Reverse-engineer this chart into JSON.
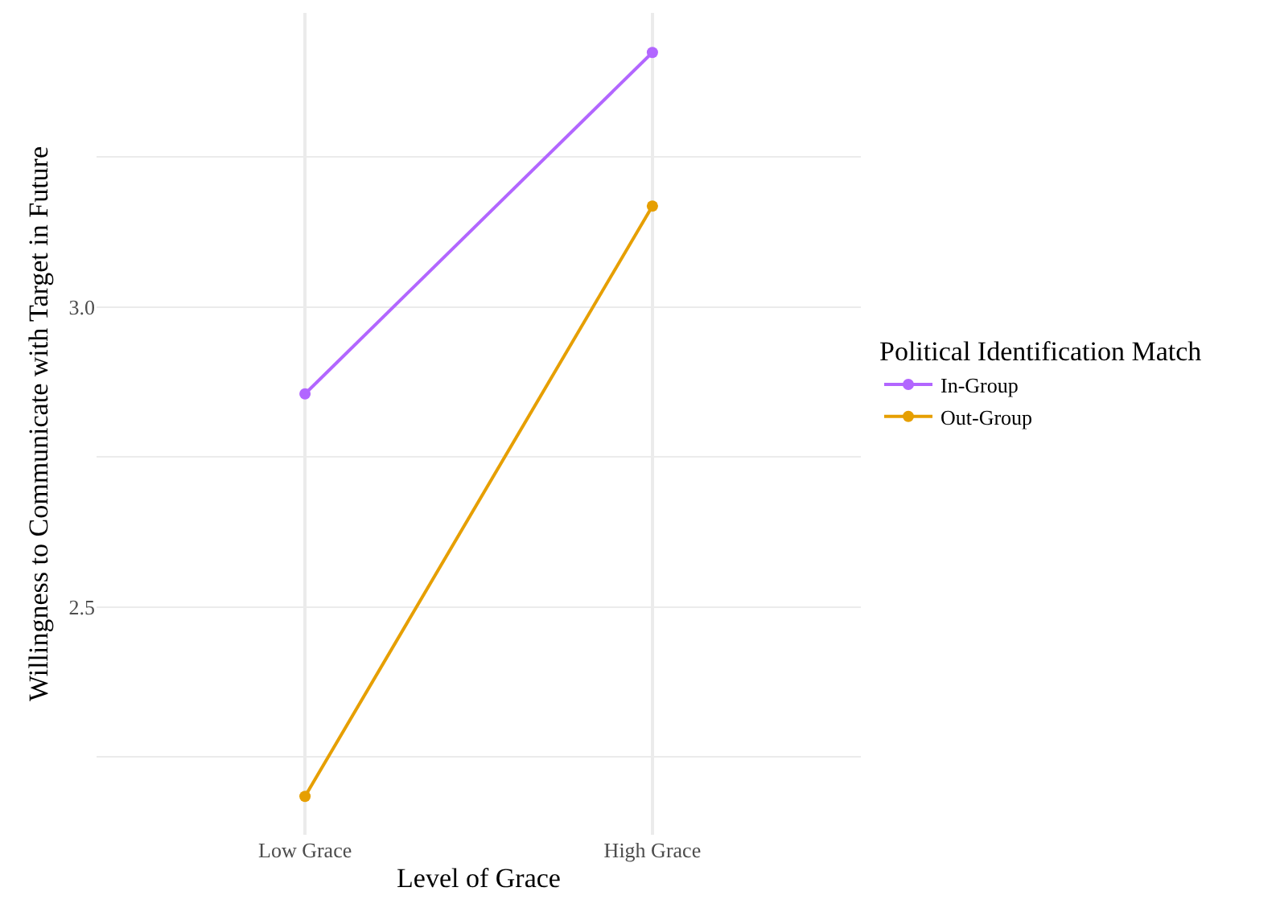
{
  "chart_data": {
    "type": "line",
    "xlabel": "Level of Grace",
    "ylabel": "Willingness to Communicate with Target in Future",
    "legend_title": "Political Identification Match",
    "categories": [
      "Low Grace",
      "High Grace"
    ],
    "series": [
      {
        "name": "In-Group",
        "color": "#b266ff",
        "values": [
          2.855,
          3.424
        ]
      },
      {
        "name": "Out-Group",
        "color": "#e69f00",
        "values": [
          2.184,
          3.168
        ]
      }
    ],
    "ylim": [
      2.12,
      3.49
    ],
    "yticks": [
      {
        "value": 2.25,
        "label": null
      },
      2.5,
      {
        "value": 2.75,
        "label": null
      },
      {
        "value": 3.0,
        "label": "3.0"
      },
      {
        "value": 3.25,
        "label": null
      }
    ],
    "grid": true,
    "legend": "right",
    "marker": "circle",
    "line_style": "solid"
  }
}
